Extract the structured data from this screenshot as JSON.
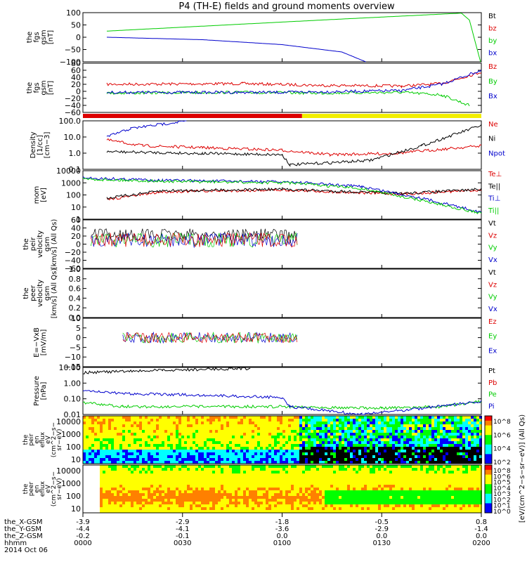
{
  "title": "P4 (TH-E) fields and ground moments overview",
  "colors": {
    "black": "#000000",
    "red": "#dd0000",
    "green": "#00cc00",
    "blue": "#0000cc",
    "yellow": "#f2ee00"
  },
  "chart_data": {
    "type": "line",
    "time_axis": {
      "xlim": [
        "0000",
        "0200"
      ],
      "rows": [
        {
          "label": "the_X-GSM",
          "values": [
            "-3.9",
            "-2.9",
            "-1.8",
            "-0.5",
            "0.8"
          ]
        },
        {
          "label": "the_Y-GSM",
          "values": [
            "-4.4",
            "-4.1",
            "-3.6",
            "-2.9",
            "-1.4"
          ]
        },
        {
          "label": "the_Z-GSM",
          "values": [
            "-0.2",
            "-0.1",
            "0.0",
            "0.0",
            "0.0"
          ]
        },
        {
          "label": "hhmm",
          "values": [
            "0000",
            "0030",
            "0100",
            "0130",
            "0200"
          ]
        }
      ],
      "date": "2014 Oct 06"
    },
    "panels": [
      {
        "id": "fgs-gsm",
        "ylabel": [
          "the",
          "fgs",
          "gsm",
          "[nT]"
        ],
        "ylim": [
          -100,
          100
        ],
        "ticks": [
          "100",
          "50",
          "0",
          "−50",
          "−100"
        ],
        "series": [
          {
            "name": "Bt",
            "color": "#000000",
            "points": []
          },
          {
            "name": "bz",
            "color": "#dd0000",
            "points": []
          },
          {
            "name": "by",
            "color": "#00cc00",
            "points": [
              [
                6,
                25
              ],
              [
                30,
                45
              ],
              [
                60,
                70
              ],
              [
                95,
                98
              ],
              [
                97,
                70
              ],
              [
                99.8,
                -100
              ]
            ]
          },
          {
            "name": "bx",
            "color": "#0000cc",
            "points": [
              [
                6,
                0
              ],
              [
                30,
                -10
              ],
              [
                50,
                -30
              ],
              [
                65,
                -60
              ],
              [
                71,
                -100
              ]
            ]
          }
        ]
      },
      {
        "id": "fgs-dsl",
        "ylabel": [
          "the",
          "fgs",
          "gsm",
          "[nT]"
        ],
        "ylim": [
          -60,
          80
        ],
        "ticks": [
          "80",
          "60",
          "40",
          "20",
          "0",
          "−20",
          "−40",
          "−60"
        ],
        "series": [
          {
            "name": "Bz",
            "color": "#dd0000",
            "points": [
              [
                6,
                20
              ],
              [
                40,
                22
              ],
              [
                60,
                17
              ],
              [
                80,
                15
              ],
              [
                90,
                22
              ],
              [
                100,
                55
              ]
            ]
          },
          {
            "name": "By",
            "color": "#00cc00",
            "points": [
              [
                6,
                -5
              ],
              [
                40,
                -3
              ],
              [
                60,
                -5
              ],
              [
                80,
                -3
              ],
              [
                90,
                -10
              ],
              [
                97,
                -40
              ]
            ]
          },
          {
            "name": "Bx",
            "color": "#0000cc",
            "points": [
              [
                6,
                -3
              ],
              [
                50,
                -3
              ],
              [
                80,
                2
              ],
              [
                90,
                20
              ],
              [
                100,
                60
              ]
            ]
          }
        ]
      },
      {
        "id": "density",
        "ylabel": [
          "Density",
          "[1/cc]",
          "[cm−3]"
        ],
        "ylim": [
          0.05,
          100
        ],
        "log": true,
        "ticks": [
          "100.0",
          "10.0",
          "1.0",
          "0.1"
        ],
        "series": [
          {
            "name": "Ne",
            "color": "#dd0000",
            "points": [
              [
                6,
                5
              ],
              [
                15,
                2
              ],
              [
                30,
                1.5
              ],
              [
                50,
                1
              ],
              [
                62,
                0.5
              ],
              [
                78,
                0.6
              ],
              [
                100,
                2
              ]
            ]
          },
          {
            "name": "Ni",
            "color": "#000000",
            "points": [
              [
                6,
                0.8
              ],
              [
                30,
                0.6
              ],
              [
                50,
                0.5
              ],
              [
                52,
                0.1
              ],
              [
                72,
                0.2
              ],
              [
                85,
                2
              ],
              [
                100,
                50
              ]
            ]
          },
          {
            "name": "Npot",
            "color": "#0000cc",
            "points": [
              [
                6,
                8
              ],
              [
                12,
                30
              ],
              [
                20,
                60
              ],
              [
                26,
                100
              ]
            ]
          }
        ]
      },
      {
        "id": "temperature",
        "ylabel": [
          "mom",
          "[eV]"
        ],
        "ylim": [
          3,
          10000
        ],
        "log": true,
        "ticks": [
          "10000",
          "1000",
          "100",
          "10",
          "1"
        ],
        "series": [
          {
            "name": "Te⊥",
            "color": "#dd0000",
            "points": [
              [
                6,
                80
              ],
              [
                20,
                300
              ],
              [
                50,
                400
              ],
              [
                80,
                200
              ],
              [
                100,
                400
              ]
            ]
          },
          {
            "name": "Te||",
            "color": "#000000",
            "points": [
              [
                6,
                100
              ],
              [
                20,
                350
              ],
              [
                50,
                450
              ],
              [
                80,
                220
              ],
              [
                100,
                450
              ]
            ]
          },
          {
            "name": "Ti⊥",
            "color": "#0000cc",
            "points": [
              [
                0,
                3000
              ],
              [
                20,
                2000
              ],
              [
                52,
                1500
              ],
              [
                70,
                700
              ],
              [
                85,
                100
              ],
              [
                100,
                10
              ]
            ]
          },
          {
            "name": "Ti||",
            "color": "#00cc00",
            "points": [
              [
                0,
                2500
              ],
              [
                20,
                1700
              ],
              [
                52,
                1300
              ],
              [
                70,
                500
              ],
              [
                85,
                70
              ],
              [
                100,
                8
              ]
            ]
          }
        ]
      },
      {
        "id": "peir-velocity",
        "ylabel": [
          "the",
          "peir",
          "velocity",
          "gsm",
          "[km/s] (All Qs)"
        ],
        "ylim": [
          -60,
          60
        ],
        "ticks": [
          "60",
          "40",
          "20",
          "0",
          "−20",
          "−40",
          "−60"
        ],
        "series": [
          {
            "name": "Vt",
            "color": "#000000",
            "points": []
          },
          {
            "name": "Vz",
            "color": "#dd0000",
            "points": []
          },
          {
            "name": "Vy",
            "color": "#00cc00",
            "points": []
          },
          {
            "name": "Vx",
            "color": "#0000cc",
            "points": []
          }
        ]
      },
      {
        "id": "peer-velocity",
        "ylabel": [
          "the",
          "peer",
          "velocity",
          "gsm",
          "[km/s] (All Qs)"
        ],
        "ylim": [
          0,
          1
        ],
        "ticks": [
          "1.0",
          "0.8",
          "0.6",
          "0.4",
          "0.2",
          "0.0"
        ],
        "series": [
          {
            "name": "Vt",
            "color": "#000000",
            "points": []
          },
          {
            "name": "Vz",
            "color": "#dd0000",
            "points": []
          },
          {
            "name": "Vy",
            "color": "#00cc00",
            "points": []
          },
          {
            "name": "Vx",
            "color": "#0000cc",
            "points": []
          }
        ]
      },
      {
        "id": "efield",
        "ylabel": [
          "E=−VxB",
          "[mV/m]"
        ],
        "ylim": [
          -15,
          10
        ],
        "ticks": [
          "10",
          "5",
          "0",
          "−5",
          "−10",
          "−15"
        ],
        "series": [
          {
            "name": "Ez",
            "color": "#dd0000",
            "points": []
          },
          {
            "name": "Ey",
            "color": "#00cc00",
            "points": []
          },
          {
            "name": "Ex",
            "color": "#0000cc",
            "points": []
          }
        ]
      },
      {
        "id": "pressure",
        "ylabel": [
          "Pressure",
          "[nPa]"
        ],
        "ylim": [
          0.005,
          20
        ],
        "log": true,
        "ticks": [
          "10.00",
          "1.00",
          "0.10",
          "0.01"
        ],
        "series": [
          {
            "name": "Pt",
            "color": "#000000",
            "points": [
              [
                0,
                8
              ],
              [
                20,
                12
              ],
              [
                42,
                17
              ]
            ]
          },
          {
            "name": "Pb",
            "color": "#dd0000",
            "points": []
          },
          {
            "name": "Pe",
            "color": "#00cc00",
            "points": [
              [
                0,
                0.04
              ],
              [
                10,
                0.02
              ],
              [
                30,
                0.02
              ],
              [
                52,
                0.02
              ],
              [
                75,
                0.015
              ],
              [
                90,
                0.02
              ],
              [
                100,
                0.05
              ]
            ]
          },
          {
            "name": "Pi",
            "color": "#0000cc",
            "points": [
              [
                0,
                0.3
              ],
              [
                10,
                0.2
              ],
              [
                30,
                0.15
              ],
              [
                50,
                0.1
              ],
              [
                52,
                0.02
              ],
              [
                70,
                0.005
              ],
              [
                85,
                0.015
              ],
              [
                100,
                0.05
              ]
            ]
          }
        ]
      }
    ],
    "spectrograms": [
      {
        "id": "peir",
        "ylabel": [
          "the",
          "peir",
          "en",
          "eflux",
          "eV",
          "(cm^2−s−",
          "sr−eV)"
        ],
        "ticks": [
          "10000",
          "1000",
          "100",
          "10"
        ],
        "colorbar_label": "[eV/(cm^2−s−sr−eV)] (All Qs)",
        "colorbar_ticks": [
          "10^8",
          "10^6",
          "10^4",
          "10^2"
        ]
      },
      {
        "id": "peer",
        "ylabel": [
          "the",
          "peer",
          "en",
          "eflux",
          "eV",
          "(cm^2−s−",
          "sr−eV)"
        ],
        "ticks": [
          "10000",
          "1000",
          "100",
          "10"
        ],
        "colorbar_ticks": [
          "10^8",
          "10^6",
          "10^5",
          "10^4",
          "10^3",
          "10^2",
          "10^1",
          "10^0"
        ]
      }
    ]
  }
}
